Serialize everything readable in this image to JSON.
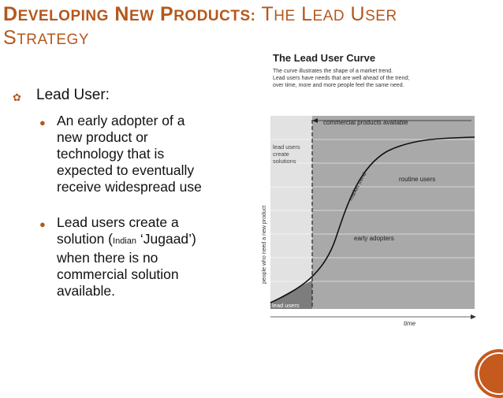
{
  "slide": {
    "title": {
      "line1_part1_cap": "D",
      "line1_part1_rest": "EVELOPING",
      "line1_part2_cap": "N",
      "line1_part2_rest": "EW",
      "line1_part3_cap": "P",
      "line1_part3_rest": "RODUCTS:",
      "line1_part4_cap": "T",
      "line1_part4_rest": "HE",
      "line1_part5_cap": "L",
      "line1_part5_rest": "EAD",
      "line1_part6_cap": "U",
      "line1_part6_rest": "SER",
      "line2_cap": "S",
      "line2_rest": "TRATEGY"
    },
    "bullet_level1": "Lead User:",
    "bullet_a": [
      "An early adopter of a",
      "new product or",
      "technology that is",
      "expected to eventually",
      "receive widespread use"
    ],
    "bullet_b_line1_pre": "Lead users create a",
    "bullet_b_line2_pre": "solution (",
    "bullet_b_line2_small": "Indian",
    "bullet_b_line2_post": " ‘Jugaad’)",
    "bullet_b_rest": [
      "when there is no",
      "commercial solution",
      "available."
    ]
  },
  "figure": {
    "title": "The Lead User Curve",
    "caption": [
      "The curve illustrates the shape of a market trend.",
      "Lead users have needs that are well ahead of the trend;",
      "over time, more and more people feel the same need."
    ],
    "commercial_label": "commercial products available",
    "lead_create_label": [
      "lead users",
      "create",
      "solutions"
    ],
    "routine_label": "routine users",
    "market_trend_label": "market trend",
    "early_adopters_label": "early adopters",
    "lead_users_label": "lead users",
    "y_axis_label": "people who need a new product",
    "x_axis_label": "time"
  },
  "colors": {
    "title": "#b5571c",
    "accent": "#c55a1e",
    "panel_light": "#e2e2e2",
    "panel_dark": "#a9a9a9"
  }
}
